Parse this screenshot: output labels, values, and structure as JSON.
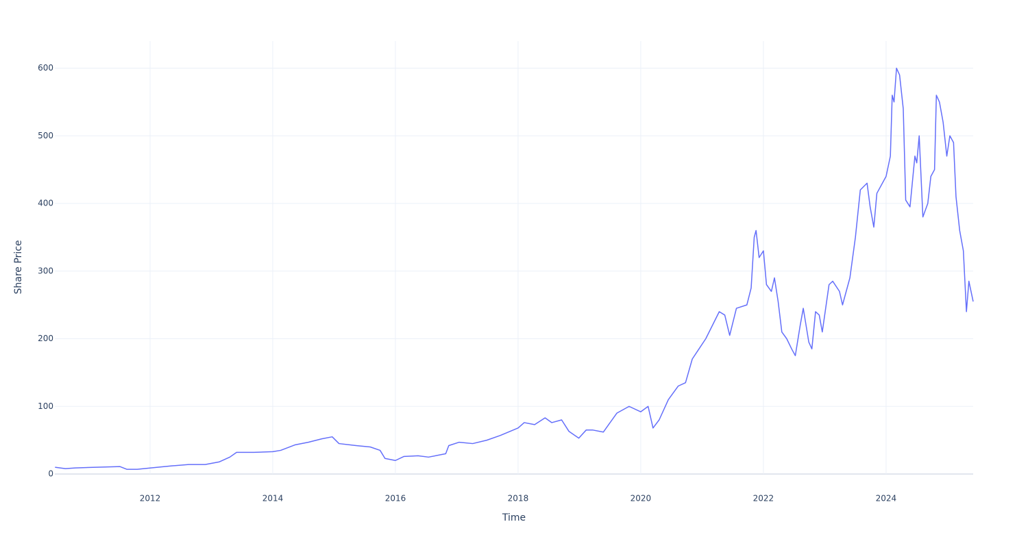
{
  "chart_data": {
    "type": "line",
    "x_label": "Time",
    "y_label": "Share Price",
    "color": "#636efa",
    "grid": true,
    "xlim": [
      2010.447,
      2025.42
    ],
    "ylim": [
      0,
      640
    ],
    "xticks": [
      2012,
      2014,
      2016,
      2018,
      2020,
      2022,
      2024
    ],
    "yticks": [
      0,
      100,
      200,
      300,
      400,
      500,
      600
    ],
    "x": [
      2010.45,
      2010.62,
      2010.78,
      2011.12,
      2011.51,
      2011.62,
      2011.79,
      2012.01,
      2012.35,
      2012.63,
      2012.9,
      2013.13,
      2013.3,
      2013.41,
      2013.69,
      2014.0,
      2014.13,
      2014.36,
      2014.58,
      2014.8,
      2014.97,
      2015.08,
      2015.36,
      2015.59,
      2015.75,
      2015.83,
      2016.0,
      2016.14,
      2016.37,
      2016.54,
      2016.82,
      2016.87,
      2017.04,
      2017.26,
      2017.49,
      2017.71,
      2018.0,
      2018.1,
      2018.27,
      2018.44,
      2018.55,
      2018.71,
      2018.83,
      2018.99,
      2019.11,
      2019.22,
      2019.39,
      2019.61,
      2019.81,
      2020.0,
      2020.12,
      2020.2,
      2020.3,
      2020.45,
      2020.61,
      2020.73,
      2020.84,
      2020.95,
      2021.06,
      2021.17,
      2021.28,
      2021.37,
      2021.45,
      2021.56,
      2021.73,
      2021.8,
      2021.85,
      2021.88,
      2021.93,
      2022.0,
      2022.05,
      2022.13,
      2022.18,
      2022.24,
      2022.3,
      2022.38,
      2022.46,
      2022.52,
      2022.6,
      2022.65,
      2022.74,
      2022.79,
      2022.85,
      2022.91,
      2022.96,
      2023.07,
      2023.13,
      2023.24,
      2023.29,
      2023.41,
      2023.5,
      2023.58,
      2023.69,
      2023.74,
      2023.8,
      2023.85,
      2024.0,
      2024.07,
      2024.1,
      2024.13,
      2024.17,
      2024.22,
      2024.28,
      2024.32,
      2024.39,
      2024.47,
      2024.5,
      2024.54,
      2024.6,
      2024.68,
      2024.73,
      2024.79,
      2024.82,
      2024.87,
      2024.93,
      2024.99,
      2025.04,
      2025.1,
      2025.14,
      2025.2,
      2025.26,
      2025.31,
      2025.35,
      2025.42
    ],
    "values": [
      10,
      8,
      9,
      10,
      11,
      7,
      7,
      9,
      12,
      14,
      14,
      18,
      25,
      32,
      32,
      33,
      35,
      43,
      47,
      52,
      55,
      45,
      42,
      40,
      35,
      23,
      20,
      26,
      27,
      25,
      30,
      42,
      47,
      45,
      50,
      57,
      68,
      76,
      73,
      83,
      76,
      80,
      63,
      53,
      65,
      65,
      62,
      90,
      100,
      92,
      100,
      68,
      80,
      110,
      130,
      135,
      170,
      185,
      200,
      220,
      240,
      235,
      205,
      245,
      250,
      275,
      350,
      360,
      320,
      330,
      280,
      270,
      290,
      255,
      210,
      200,
      185,
      175,
      220,
      245,
      195,
      185,
      240,
      235,
      210,
      280,
      285,
      270,
      250,
      290,
      350,
      420,
      430,
      395,
      365,
      415,
      440,
      470,
      560,
      550,
      600,
      590,
      540,
      405,
      395,
      470,
      460,
      500,
      380,
      400,
      440,
      450,
      560,
      550,
      520,
      470,
      500,
      490,
      410,
      360,
      330,
      240,
      285,
      255
    ]
  }
}
